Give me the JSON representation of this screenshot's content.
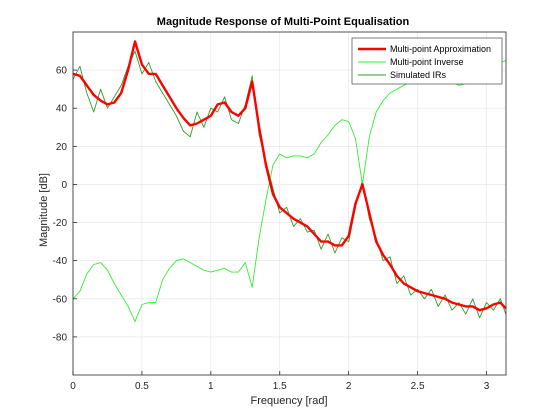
{
  "chart_data": {
    "type": "line",
    "title": "Magnitude Response of Multi-Point Equalisation",
    "xlabel": "Frequency [rad]",
    "ylabel": "Magnitude [dB]",
    "xlim": [
      0,
      3.14159
    ],
    "ylim": [
      -100,
      80
    ],
    "xticks": [
      0,
      0.5,
      1,
      1.5,
      2,
      2.5,
      3
    ],
    "xtick_labels": [
      "0",
      "0.5",
      "1",
      "1.5",
      "2",
      "2.5",
      "3"
    ],
    "yticks": [
      -80,
      -60,
      -40,
      -20,
      0,
      20,
      40,
      60
    ],
    "ytick_labels": [
      "-80",
      "-60",
      "-40",
      "-20",
      "0",
      "20",
      "40",
      "60"
    ],
    "grid": true,
    "legend_position": "top-right",
    "series": [
      {
        "name": "Multi-point Approximation",
        "color": "#ff0000",
        "x": [
          0,
          0.05,
          0.1,
          0.15,
          0.2,
          0.25,
          0.3,
          0.35,
          0.4,
          0.45,
          0.5,
          0.55,
          0.6,
          0.65,
          0.7,
          0.75,
          0.8,
          0.85,
          0.9,
          0.95,
          1.0,
          1.05,
          1.1,
          1.15,
          1.2,
          1.25,
          1.3,
          1.35,
          1.4,
          1.45,
          1.5,
          1.55,
          1.6,
          1.65,
          1.7,
          1.75,
          1.8,
          1.85,
          1.9,
          1.95,
          2.0,
          2.05,
          2.1,
          2.15,
          2.2,
          2.25,
          2.3,
          2.35,
          2.4,
          2.45,
          2.5,
          2.55,
          2.6,
          2.65,
          2.7,
          2.75,
          2.8,
          2.85,
          2.9,
          2.95,
          3.0,
          3.05,
          3.1,
          3.14
        ],
        "y": [
          58,
          57,
          52,
          47,
          44,
          42,
          43,
          48,
          60,
          75,
          63,
          58,
          58,
          52,
          46,
          40,
          35,
          31,
          32,
          34,
          36,
          42,
          43,
          38,
          36,
          40,
          54,
          30,
          10,
          -5,
          -12,
          -15,
          -18,
          -20,
          -22,
          -26,
          -30,
          -30,
          -32,
          -32,
          -27,
          -10,
          0,
          -15,
          -30,
          -37,
          -42,
          -48,
          -52,
          -54,
          -56,
          -57,
          -58,
          -59,
          -60,
          -62,
          -63,
          -64,
          -64,
          -66,
          -65,
          -63,
          -62,
          -65
        ]
      },
      {
        "name": "Multi-point Inverse",
        "color": "#33ee33",
        "x": [
          0,
          0.05,
          0.1,
          0.15,
          0.2,
          0.25,
          0.3,
          0.35,
          0.4,
          0.45,
          0.5,
          0.55,
          0.6,
          0.65,
          0.7,
          0.75,
          0.8,
          0.85,
          0.9,
          0.95,
          1.0,
          1.05,
          1.1,
          1.15,
          1.2,
          1.25,
          1.3,
          1.35,
          1.4,
          1.45,
          1.5,
          1.55,
          1.6,
          1.65,
          1.7,
          1.75,
          1.8,
          1.85,
          1.9,
          1.95,
          2.0,
          2.05,
          2.1,
          2.15,
          2.2,
          2.25,
          2.3,
          2.35,
          2.4,
          2.45,
          2.5,
          2.55,
          2.6,
          2.65,
          2.7,
          2.75,
          2.8,
          2.85,
          2.9,
          2.95,
          3.0,
          3.05,
          3.1,
          3.14
        ],
        "y": [
          -60,
          -56,
          -47,
          -42,
          -41,
          -45,
          -52,
          -58,
          -64,
          -72,
          -63,
          -62,
          -62,
          -50,
          -44,
          -40,
          -39,
          -41,
          -43,
          -45,
          -46,
          -45,
          -44,
          -46,
          -46,
          -41,
          -54,
          -28,
          -8,
          10,
          16,
          14,
          15,
          15,
          14,
          16,
          22,
          26,
          31,
          34,
          33,
          24,
          0,
          25,
          38,
          44,
          48,
          50,
          52,
          54,
          56,
          56,
          55,
          54,
          53,
          54,
          52,
          53,
          55,
          57,
          58,
          60,
          64,
          65
        ]
      },
      {
        "name": "Simulated IRs",
        "color": "#2e9e24",
        "x": [
          0,
          0.05,
          0.1,
          0.15,
          0.2,
          0.25,
          0.3,
          0.35,
          0.4,
          0.45,
          0.5,
          0.55,
          0.6,
          0.65,
          0.7,
          0.75,
          0.8,
          0.85,
          0.9,
          0.95,
          1.0,
          1.05,
          1.1,
          1.15,
          1.2,
          1.25,
          1.3,
          1.35,
          1.4,
          1.45,
          1.5,
          1.55,
          1.6,
          1.65,
          1.7,
          1.75,
          1.8,
          1.85,
          1.9,
          1.95,
          2.0,
          2.05,
          2.1,
          2.15,
          2.2,
          2.25,
          2.3,
          2.35,
          2.4,
          2.45,
          2.5,
          2.55,
          2.6,
          2.65,
          2.7,
          2.75,
          2.8,
          2.85,
          2.9,
          2.95,
          3.0,
          3.05,
          3.1,
          3.14
        ],
        "y": [
          55,
          62,
          48,
          38,
          50,
          40,
          46,
          52,
          62,
          70,
          58,
          64,
          54,
          48,
          42,
          36,
          28,
          25,
          38,
          30,
          40,
          38,
          46,
          34,
          32,
          42,
          57,
          26,
          12,
          -2,
          -15,
          -12,
          -22,
          -18,
          -25,
          -24,
          -34,
          -26,
          -36,
          -28,
          -30,
          -12,
          2,
          -18,
          -28,
          -40,
          -38,
          -52,
          -48,
          -58,
          -55,
          -60,
          -55,
          -64,
          -58,
          -66,
          -62,
          -68,
          -60,
          -70,
          -62,
          -66,
          -60,
          -68
        ]
      }
    ]
  }
}
